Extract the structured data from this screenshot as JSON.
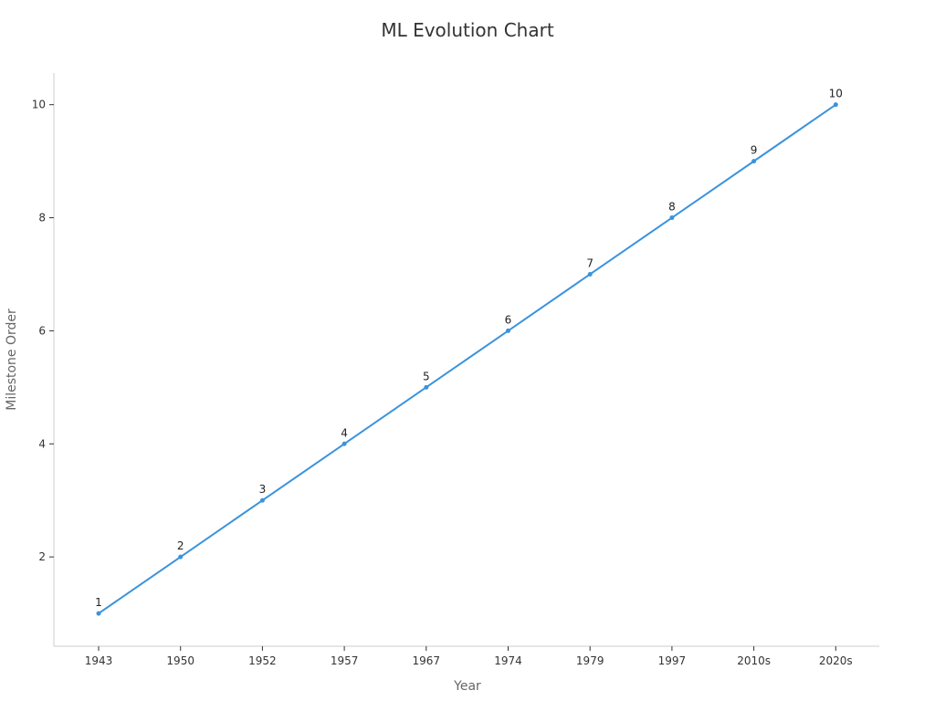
{
  "chart_data": {
    "type": "line",
    "title": "ML Evolution Chart",
    "xlabel": "Year",
    "ylabel": "Milestone Order",
    "categories": [
      "1943",
      "1950",
      "1952",
      "1957",
      "1967",
      "1974",
      "1979",
      "1997",
      "2010s",
      "2020s"
    ],
    "series": [
      {
        "values": [
          1,
          2,
          3,
          4,
          5,
          6,
          7,
          8,
          9,
          10
        ]
      }
    ],
    "data_labels": [
      "1",
      "2",
      "3",
      "4",
      "5",
      "6",
      "7",
      "8",
      "9",
      "10"
    ],
    "yticks": [
      2,
      4,
      6,
      8,
      10
    ],
    "ylim": [
      0.42,
      10.56
    ],
    "grid": false,
    "legend": "none",
    "colors": {
      "line": "#3a93dd",
      "axis": "#cccccc",
      "tick": "#333333"
    }
  }
}
